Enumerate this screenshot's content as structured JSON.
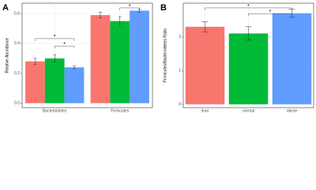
{
  "chart_data": [
    {
      "type": "bar",
      "label": "A",
      "ylabel": "Relative Abundance",
      "categories": [
        "Bacteroidetes",
        "Firmicutes"
      ],
      "series": [
        {
          "color": "#F8766D",
          "values": [
            0.28,
            0.59
          ],
          "errors": [
            0.02,
            0.02
          ]
        },
        {
          "color": "#00BA38",
          "values": [
            0.3,
            0.55
          ],
          "errors": [
            0.025,
            0.03
          ]
        },
        {
          "color": "#619CFF",
          "values": [
            0.24,
            0.62
          ],
          "errors": [
            0.01,
            0.01
          ]
        }
      ],
      "ylim": [
        -0.03,
        0.67
      ],
      "yticks": [
        {
          "value": 0,
          "label": "0.0"
        },
        0.2,
        0.4,
        0.6
      ],
      "grid": true,
      "annotations": [
        "*",
        "*",
        "*"
      ]
    },
    {
      "type": "bar",
      "label": "B",
      "ylabel": "Firmicutes/Bacteroidetes Ratio",
      "categories": [
        "lean",
        "normal",
        "obese"
      ],
      "values": [
        2.3,
        2.1,
        2.7
      ],
      "errors": [
        0.15,
        0.2,
        0.12
      ],
      "colors": [
        "#F8766D",
        "#00BA38",
        "#619CFF"
      ],
      "ylim": [
        -0.1,
        3.0
      ],
      "yticks": [
        0,
        1,
        2
      ],
      "grid": true,
      "annotations": [
        "*",
        "*"
      ]
    }
  ]
}
